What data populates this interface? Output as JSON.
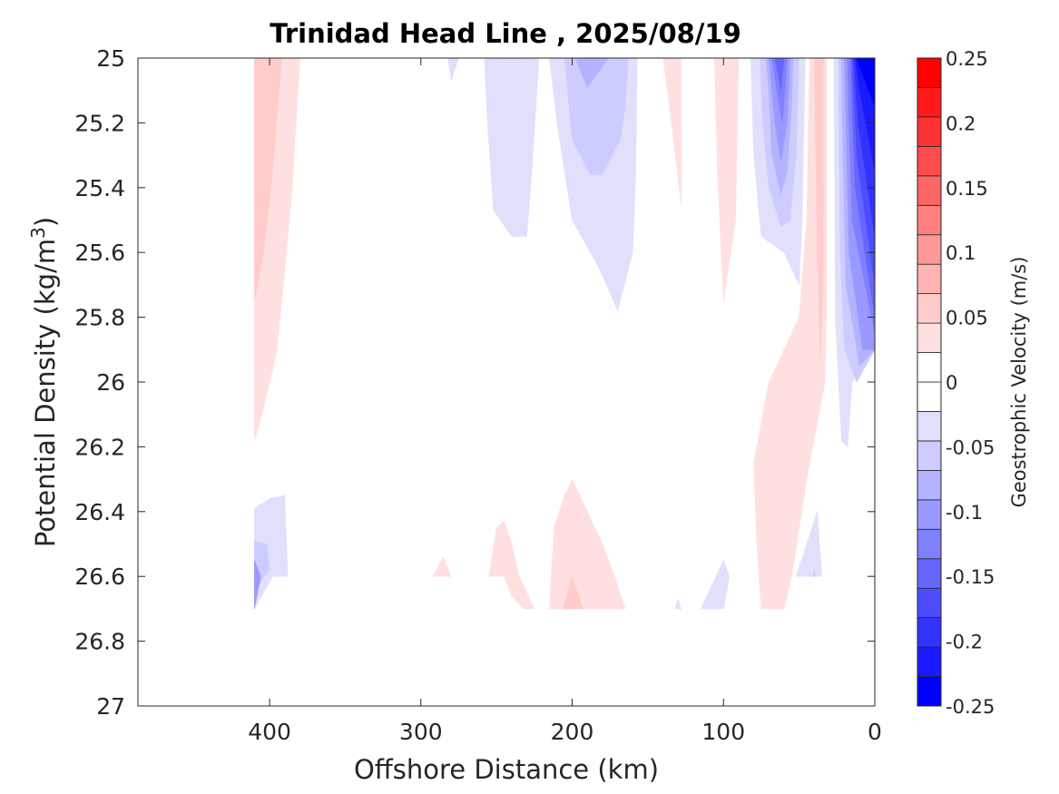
{
  "chart_data": {
    "type": "contourf",
    "title": "Trinidad Head Line , 2025/08/19",
    "xlabel": "Offshore Distance (km)",
    "ylabel_main": "Potential Density (kg/m",
    "ylabel_sup": "3",
    "ylabel_close": ")",
    "xlim": [
      487,
      0
    ],
    "ylim": [
      25,
      27
    ],
    "x_reversed": true,
    "y_reversed": true,
    "xticks": [
      400,
      300,
      200,
      100,
      0
    ],
    "xtick_labels": [
      "400",
      "300",
      "200",
      "100",
      "0"
    ],
    "yticks": [
      25,
      25.2,
      25.4,
      25.6,
      25.8,
      26,
      26.2,
      26.4,
      26.6,
      26.8,
      27
    ],
    "ytick_labels": [
      "25",
      "25.2",
      "25.4",
      "25.6",
      "25.8",
      "26",
      "26.2",
      "26.4",
      "26.6",
      "26.8",
      "27"
    ],
    "colorbar": {
      "label": "Geostrophic Velocity (m/s)",
      "limits": [
        -0.25,
        0.25
      ],
      "levels": [
        -0.25,
        -0.225,
        -0.2,
        -0.175,
        -0.15,
        -0.125,
        -0.1,
        -0.075,
        -0.05,
        -0.025,
        0,
        0.025,
        0.05,
        0.075,
        0.1,
        0.125,
        0.15,
        0.175,
        0.2,
        0.225,
        0.25
      ],
      "colors": [
        "#0000ff",
        "#1a1aff",
        "#3333ff",
        "#4d4dff",
        "#6666ff",
        "#8080ff",
        "#9999ff",
        "#b3b3ff",
        "#ccccff",
        "#e0e0fc",
        "#ffffff",
        "#ffffff",
        "#ffe0e0",
        "#ffcccc",
        "#ffb3b3",
        "#ff9999",
        "#ff8080",
        "#ff6666",
        "#ff4d4d",
        "#ff3333",
        "#ff1a1a",
        "#ff0000"
      ],
      "tick_values": [
        0.25,
        0.2,
        0.15,
        0.1,
        0.05,
        0,
        -0.05,
        -0.1,
        -0.15,
        -0.2,
        -0.25
      ],
      "tick_labels": [
        "0.25",
        "0.2",
        "0.15",
        "0.1",
        "0.05",
        "0",
        "-0.05",
        "-0.1",
        "-0.15",
        "-0.2",
        "-0.25"
      ]
    },
    "data_extent": {
      "x_max_km": 410,
      "density_max": 26.7
    },
    "contour_regions": [
      {
        "name": "offshore-positive-outer",
        "level": 0.025,
        "color": "#ffe0e0",
        "points": [
          [
            410,
            25
          ],
          [
            380,
            25
          ],
          [
            385,
            25.4
          ],
          [
            395,
            25.9
          ],
          [
            405,
            26.1
          ],
          [
            410,
            26.18
          ]
        ]
      },
      {
        "name": "offshore-positive-inner",
        "level": 0.05,
        "color": "#ffcccc",
        "points": [
          [
            410,
            25
          ],
          [
            392,
            25
          ],
          [
            398,
            25.35
          ],
          [
            404,
            25.6
          ],
          [
            410,
            25.75
          ]
        ]
      },
      {
        "name": "offshore-deep-negative-outer",
        "level": -0.025,
        "color": "#e0e0fc",
        "points": [
          [
            410,
            26.39
          ],
          [
            400,
            26.36
          ],
          [
            390,
            26.35
          ],
          [
            388,
            26.6
          ],
          [
            398,
            26.6
          ],
          [
            410,
            26.7
          ]
        ]
      },
      {
        "name": "offshore-deep-negative-mid",
        "level": -0.05,
        "color": "#ccccff",
        "points": [
          [
            410,
            26.49
          ],
          [
            402,
            26.5
          ],
          [
            400,
            26.58
          ],
          [
            404,
            26.6
          ],
          [
            410,
            26.66
          ]
        ]
      },
      {
        "name": "offshore-deep-negative-inner",
        "level": -0.075,
        "color": "#9999ff",
        "points": [
          [
            410,
            26.55
          ],
          [
            406,
            26.6
          ],
          [
            410,
            26.7
          ]
        ]
      },
      {
        "name": "small-negative-top-280",
        "level": -0.025,
        "color": "#e0e0fc",
        "points": [
          [
            282,
            25
          ],
          [
            275,
            25
          ],
          [
            280,
            25.07
          ]
        ]
      },
      {
        "name": "negative-tongue-240",
        "level": -0.025,
        "color": "#e0e0fc",
        "points": [
          [
            258,
            25
          ],
          [
            222,
            25
          ],
          [
            226,
            25.3
          ],
          [
            230,
            25.55
          ],
          [
            240,
            25.55
          ],
          [
            252,
            25.47
          ],
          [
            256,
            25.2
          ]
        ]
      },
      {
        "name": "negative-tongue-200-outer",
        "level": -0.025,
        "color": "#e0e0fc",
        "points": [
          [
            215,
            25
          ],
          [
            157,
            25
          ],
          [
            158,
            25.35
          ],
          [
            160,
            25.6
          ],
          [
            170,
            25.78
          ],
          [
            182,
            25.65
          ],
          [
            200,
            25.5
          ],
          [
            210,
            25.2
          ]
        ]
      },
      {
        "name": "negative-tongue-200-mid",
        "level": -0.05,
        "color": "#ccccff",
        "points": [
          [
            205,
            25
          ],
          [
            163,
            25
          ],
          [
            165,
            25.15
          ],
          [
            168,
            25.25
          ],
          [
            180,
            25.36
          ],
          [
            188,
            25.36
          ],
          [
            200,
            25.25
          ]
        ]
      },
      {
        "name": "negative-tongue-200-inner",
        "level": -0.075,
        "color": "#b3b3ff",
        "points": [
          [
            198,
            25
          ],
          [
            176,
            25
          ],
          [
            190,
            25.09
          ]
        ]
      },
      {
        "name": "positive-sliver-140",
        "level": 0.025,
        "color": "#ffe0e0",
        "points": [
          [
            140,
            25
          ],
          [
            128,
            25
          ],
          [
            128,
            25.45
          ],
          [
            137,
            25.1
          ]
        ]
      },
      {
        "name": "positive-sliver-100",
        "level": 0.025,
        "color": "#ffe0e0",
        "points": [
          [
            106,
            25
          ],
          [
            90,
            25
          ],
          [
            92,
            25.5
          ],
          [
            100,
            25.75
          ],
          [
            104,
            25.35
          ]
        ]
      },
      {
        "name": "nearshore-negative-eddy-l1",
        "level": -0.025,
        "color": "#e0e0fc",
        "points": [
          [
            82,
            25
          ],
          [
            46,
            25
          ],
          [
            48,
            25.5
          ],
          [
            50,
            25.7
          ],
          [
            60,
            25.6
          ],
          [
            75,
            25.55
          ],
          [
            80,
            25.3
          ]
        ]
      },
      {
        "name": "nearshore-negative-eddy-l2",
        "level": -0.05,
        "color": "#ccccff",
        "points": [
          [
            76,
            25
          ],
          [
            50,
            25
          ],
          [
            52,
            25.3
          ],
          [
            56,
            25.5
          ],
          [
            62,
            25.52
          ],
          [
            70,
            25.4
          ],
          [
            74,
            25.2
          ]
        ]
      },
      {
        "name": "nearshore-negative-eddy-l3",
        "level": -0.075,
        "color": "#b3b3ff",
        "points": [
          [
            72,
            25
          ],
          [
            54,
            25
          ],
          [
            55,
            25.15
          ],
          [
            58,
            25.35
          ],
          [
            62,
            25.42
          ],
          [
            68,
            25.3
          ],
          [
            70,
            25.1
          ]
        ]
      },
      {
        "name": "nearshore-negative-eddy-l4",
        "level": -0.1,
        "color": "#9999ff",
        "points": [
          [
            70,
            25
          ],
          [
            56,
            25
          ],
          [
            58,
            25.2
          ],
          [
            62,
            25.32
          ],
          [
            66,
            25.2
          ]
        ]
      },
      {
        "name": "nearshore-negative-eddy-l5",
        "level": -0.125,
        "color": "#8080ff",
        "points": [
          [
            68,
            25
          ],
          [
            58,
            25
          ],
          [
            61,
            25.2
          ],
          [
            64,
            25.12
          ]
        ]
      },
      {
        "name": "nearshore-negative-eddy-l6",
        "level": -0.15,
        "color": "#6666ff",
        "points": [
          [
            66,
            25
          ],
          [
            60,
            25
          ],
          [
            62,
            25.1
          ]
        ]
      },
      {
        "name": "coastal-positive-outer",
        "level": 0.025,
        "color": "#ffe0e0",
        "points": [
          [
            43,
            25
          ],
          [
            32,
            25
          ],
          [
            32,
            25.8
          ],
          [
            33,
            26.0
          ],
          [
            45,
            26.3
          ],
          [
            55,
            26.6
          ],
          [
            60,
            26.7
          ],
          [
            75,
            26.7
          ],
          [
            78,
            26.5
          ],
          [
            80,
            26.25
          ],
          [
            70,
            26.0
          ],
          [
            50,
            25.8
          ],
          [
            45,
            25.5
          ]
        ]
      },
      {
        "name": "coastal-positive-inner",
        "level": 0.05,
        "color": "#ffcccc",
        "points": [
          [
            40,
            25
          ],
          [
            34,
            25
          ],
          [
            34,
            25.7
          ],
          [
            36,
            25.93
          ],
          [
            38,
            25.6
          ]
        ]
      },
      {
        "name": "coastal-jet-l1",
        "level": -0.025,
        "color": "#e0e0fc",
        "points": [
          [
            27,
            25
          ],
          [
            0,
            25
          ],
          [
            0,
            25.9
          ],
          [
            15,
            26.0
          ],
          [
            18,
            26.2
          ],
          [
            22,
            26.18
          ],
          [
            26,
            25.8
          ]
        ]
      },
      {
        "name": "coastal-jet-l2",
        "level": -0.05,
        "color": "#ccccff",
        "points": [
          [
            24,
            25
          ],
          [
            0,
            25
          ],
          [
            0,
            25.9
          ],
          [
            12,
            26.0
          ],
          [
            20,
            25.9
          ],
          [
            23,
            25.6
          ]
        ]
      },
      {
        "name": "coastal-jet-l3",
        "level": -0.075,
        "color": "#b3b3ff",
        "points": [
          [
            22,
            25
          ],
          [
            0,
            25
          ],
          [
            0,
            25.9
          ],
          [
            10,
            25.95
          ],
          [
            19,
            25.7
          ],
          [
            21,
            25.3
          ]
        ]
      },
      {
        "name": "coastal-jet-l4",
        "level": -0.1,
        "color": "#9999ff",
        "points": [
          [
            20,
            25
          ],
          [
            0,
            25
          ],
          [
            0,
            25.9
          ],
          [
            8,
            25.9
          ],
          [
            17,
            25.6
          ],
          [
            19,
            25.2
          ]
        ]
      },
      {
        "name": "coastal-jet-l5",
        "level": -0.125,
        "color": "#8080ff",
        "points": [
          [
            18,
            25
          ],
          [
            0,
            25
          ],
          [
            0,
            25.85
          ],
          [
            15,
            25.5
          ],
          [
            17,
            25.2
          ]
        ]
      },
      {
        "name": "coastal-jet-l6",
        "level": -0.15,
        "color": "#6666ff",
        "points": [
          [
            16,
            25
          ],
          [
            0,
            25
          ],
          [
            0,
            25.8
          ],
          [
            13,
            25.4
          ],
          [
            15,
            25.15
          ]
        ]
      },
      {
        "name": "coastal-jet-l7",
        "level": -0.175,
        "color": "#4d4dff",
        "points": [
          [
            15,
            25
          ],
          [
            0,
            25
          ],
          [
            0,
            25.7
          ],
          [
            12,
            25.3
          ],
          [
            14,
            25.1
          ]
        ]
      },
      {
        "name": "coastal-jet-l8",
        "level": -0.2,
        "color": "#3333ff",
        "points": [
          [
            14,
            25
          ],
          [
            0,
            25
          ],
          [
            0,
            25.55
          ],
          [
            11,
            25.2
          ]
        ]
      },
      {
        "name": "coastal-jet-l9",
        "level": -0.225,
        "color": "#1a1aff",
        "points": [
          [
            13,
            25
          ],
          [
            0,
            25
          ],
          [
            0,
            25.35
          ],
          [
            10,
            25.1
          ]
        ]
      },
      {
        "name": "coastal-jet-core",
        "level": -0.25,
        "color": "#0000ff",
        "points": [
          [
            12,
            25
          ],
          [
            0,
            25
          ],
          [
            0,
            25.15
          ]
        ]
      },
      {
        "name": "deep-positive-280",
        "level": 0.025,
        "color": "#ffe0e0",
        "points": [
          [
            292,
            26.6
          ],
          [
            280,
            26.6
          ],
          [
            285,
            26.54
          ]
        ]
      },
      {
        "name": "deep-positive-245",
        "level": 0.025,
        "color": "#ffe0e0",
        "points": [
          [
            255,
            26.6
          ],
          [
            250,
            26.45
          ],
          [
            245,
            26.43
          ],
          [
            240,
            26.5
          ],
          [
            235,
            26.6
          ],
          [
            228,
            26.67
          ],
          [
            225,
            26.7
          ],
          [
            232,
            26.7
          ],
          [
            240,
            26.66
          ],
          [
            245,
            26.6
          ]
        ]
      },
      {
        "name": "deep-positive-200-outer",
        "level": 0.025,
        "color": "#ffe0e0",
        "points": [
          [
            215,
            26.7
          ],
          [
            212,
            26.45
          ],
          [
            205,
            26.35
          ],
          [
            200,
            26.3
          ],
          [
            190,
            26.4
          ],
          [
            180,
            26.5
          ],
          [
            172,
            26.6
          ],
          [
            165,
            26.7
          ]
        ]
      },
      {
        "name": "deep-positive-200-inner",
        "level": 0.05,
        "color": "#ffcccc",
        "points": [
          [
            206,
            26.7
          ],
          [
            200,
            26.6
          ],
          [
            193,
            26.7
          ]
        ]
      },
      {
        "name": "deep-negative-130",
        "level": -0.025,
        "color": "#e0e0fc",
        "points": [
          [
            132,
            26.7
          ],
          [
            130,
            26.67
          ],
          [
            128,
            26.7
          ]
        ]
      },
      {
        "name": "deep-negative-100",
        "level": -0.025,
        "color": "#e0e0fc",
        "points": [
          [
            115,
            26.7
          ],
          [
            105,
            26.6
          ],
          [
            100,
            26.55
          ],
          [
            96,
            26.6
          ],
          [
            100,
            26.7
          ]
        ]
      },
      {
        "name": "deep-negative-40",
        "level": -0.025,
        "color": "#e0e0fc",
        "points": [
          [
            52,
            26.6
          ],
          [
            45,
            26.5
          ],
          [
            38,
            26.4
          ],
          [
            35,
            26.6
          ]
        ]
      },
      {
        "name": "deep-negative-40-inner",
        "level": -0.05,
        "color": "#ccccff",
        "points": [
          [
            41,
            26.6
          ],
          [
            40,
            26.58
          ],
          [
            39,
            26.6
          ]
        ]
      }
    ]
  }
}
